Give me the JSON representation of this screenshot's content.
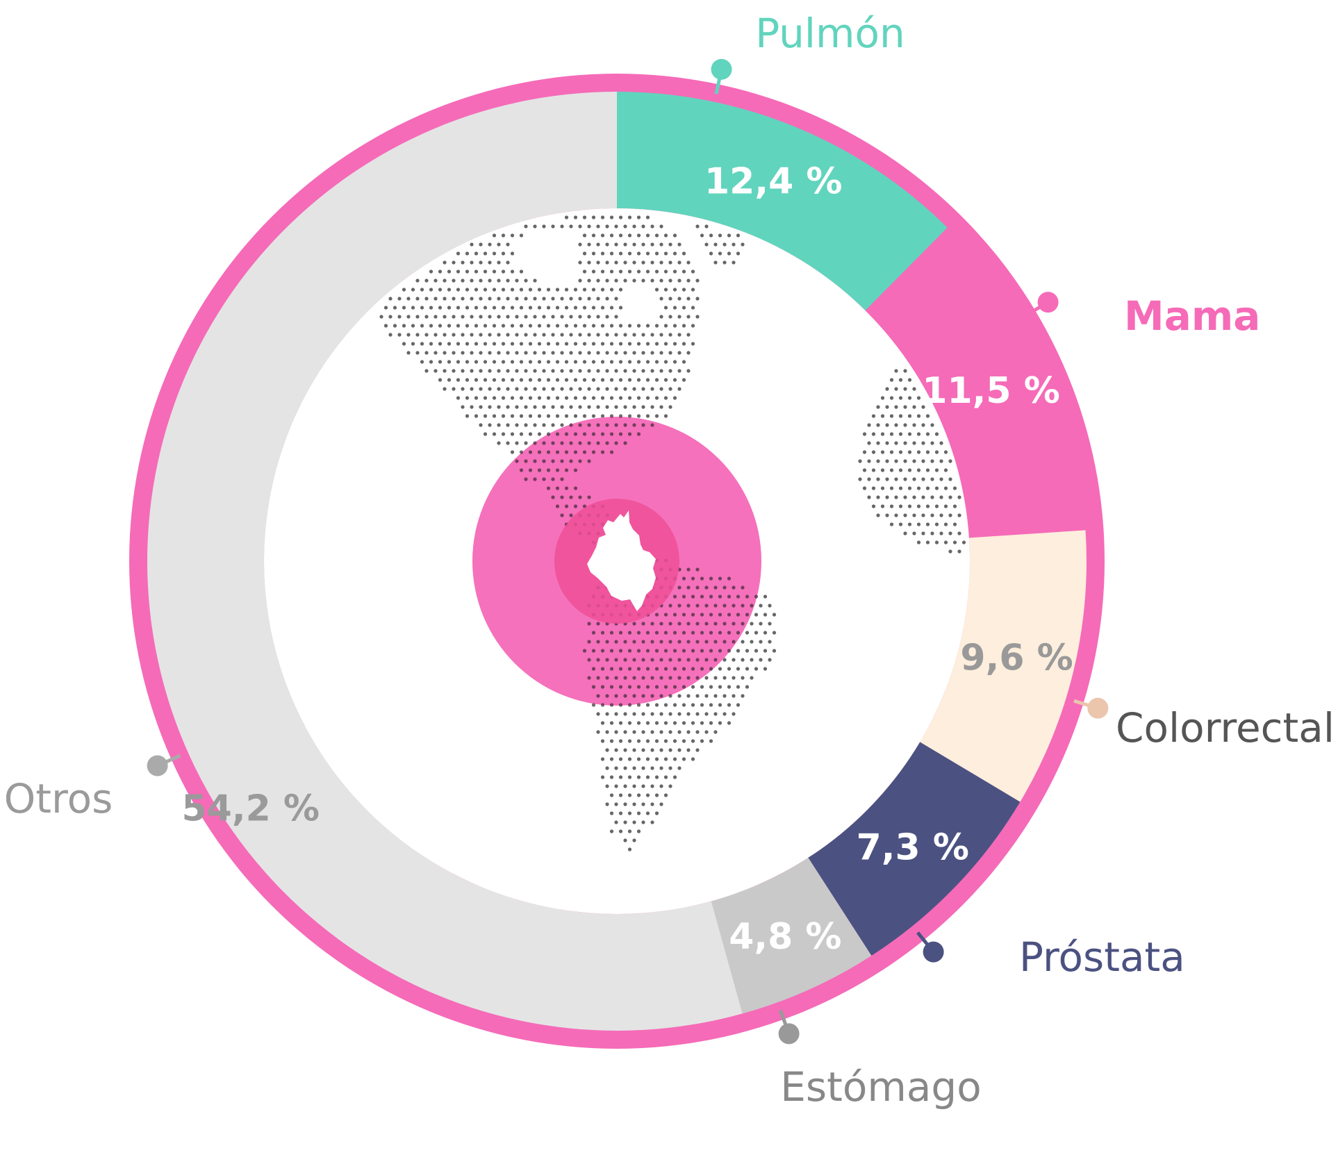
{
  "chart_data": {
    "type": "pie",
    "title": "",
    "unit": "%",
    "series": [
      {
        "name": "",
        "slices": [
          {
            "label": "Pulmón",
            "value": 12.4,
            "value_label": "12,4 %",
            "color": "#61d4bd",
            "label_color": "#61d4bd",
            "value_color": "#ffffff",
            "label_bold": false
          },
          {
            "label": "Mama",
            "value": 11.5,
            "value_label": "11,5 %",
            "color": "#f56bb8",
            "label_color": "#f56bb8",
            "value_color": "#ffffff",
            "label_bold": true
          },
          {
            "label": "Colorrectal",
            "value": 9.6,
            "value_label": "9,6 %",
            "color": "#fdeedd",
            "label_color": "#555555",
            "value_color": "#999999",
            "label_bold": false,
            "marker_color": "#ebc5ac"
          },
          {
            "label": "Próstata",
            "value": 7.3,
            "value_label": "7,3 %",
            "color": "#4b5281",
            "label_color": "#4b5281",
            "value_color": "#ffffff",
            "label_bold": false
          },
          {
            "label": "Estómago",
            "value": 4.8,
            "value_label": "4,8 %",
            "color": "#c9c9c9",
            "label_color": "#888888",
            "value_color": "#ffffff",
            "label_bold": false,
            "marker_color": "#999999"
          },
          {
            "label": "Otros",
            "value": 54.2,
            "value_label": "54,2 %",
            "color": "#e4e4e4",
            "label_color": "#9a9a9a",
            "value_color": "#9a9a9a",
            "label_bold": false,
            "marker_color": "#aaaaaa"
          }
        ]
      }
    ],
    "legend": "none",
    "background_map": "dotted-world-map",
    "highlight": "Colombia",
    "colors": {
      "outer_ring": "#f56bb8",
      "center": "#f56bb8",
      "center_inner": "#ee4f97",
      "map_dots": "#666666"
    }
  }
}
